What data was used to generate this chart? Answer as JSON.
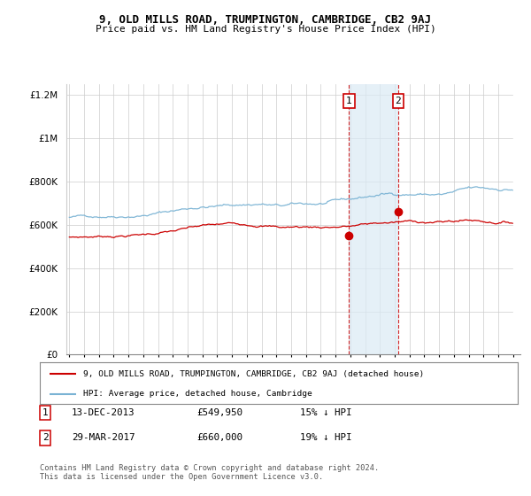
{
  "title": "9, OLD MILLS ROAD, TRUMPINGTON, CAMBRIDGE, CB2 9AJ",
  "subtitle": "Price paid vs. HM Land Registry's House Price Index (HPI)",
  "legend_line1": "9, OLD MILLS ROAD, TRUMPINGTON, CAMBRIDGE, CB2 9AJ (detached house)",
  "legend_line2": "HPI: Average price, detached house, Cambridge",
  "annotation1_label": "1",
  "annotation1_date": "13-DEC-2013",
  "annotation1_price": "£549,950",
  "annotation1_pct": "15% ↓ HPI",
  "annotation2_label": "2",
  "annotation2_date": "29-MAR-2017",
  "annotation2_price": "£660,000",
  "annotation2_pct": "19% ↓ HPI",
  "footnote": "Contains HM Land Registry data © Crown copyright and database right 2024.\nThis data is licensed under the Open Government Licence v3.0.",
  "hpi_color": "#7ab3d4",
  "price_color": "#cc0000",
  "annotation_color": "#cc0000",
  "shade_color": "#daeaf5",
  "background_color": "#ffffff",
  "ylim": [
    0,
    1250000
  ],
  "yticks": [
    0,
    200000,
    400000,
    600000,
    800000,
    1000000,
    1200000
  ],
  "sale1_year": 2013.92,
  "sale2_year": 2017.23,
  "sale1_price": 549950,
  "sale2_price": 660000,
  "xstart": 1995,
  "xend": 2025
}
